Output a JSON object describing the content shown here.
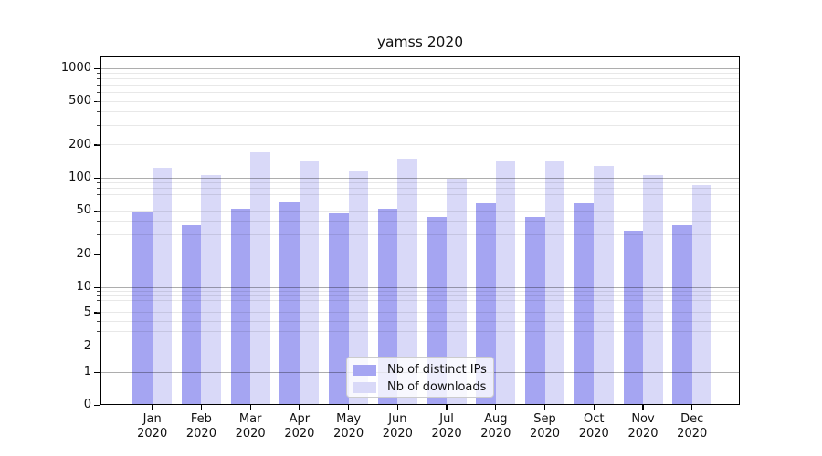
{
  "title": "yamss 2020",
  "legend": {
    "items": [
      {
        "label": "Nb of distinct IPs",
        "color": "#a5a5f2"
      },
      {
        "label": "Nb of downloads",
        "color": "#d9d9f8"
      }
    ]
  },
  "y_axis": {
    "tick_labels": [
      "1000",
      "500",
      "200",
      "100",
      "50",
      "20",
      "10",
      "5",
      "2",
      "1",
      "0"
    ]
  },
  "x_axis": {
    "months": [
      "Jan",
      "Feb",
      "Mar",
      "Apr",
      "May",
      "Jun",
      "Jul",
      "Aug",
      "Sep",
      "Oct",
      "Nov",
      "Dec"
    ],
    "year": "2020"
  },
  "colors": {
    "distinct_ips": "#a5a5f2",
    "downloads": "#d9d9f8",
    "grid_major": "rgba(0,0,0,0.32)",
    "grid_minor": "rgba(0,0,0,0.09)",
    "axis": "#000000"
  },
  "chart_data": {
    "type": "bar",
    "title": "yamss 2020",
    "yscale": "symlog",
    "ylim": [
      0,
      1200
    ],
    "grid": "horizontal log major+minor",
    "legend_position": "lower center",
    "y_ticks": [
      0,
      1,
      2,
      5,
      10,
      20,
      50,
      100,
      200,
      500,
      1000
    ],
    "categories": [
      "Jan 2020",
      "Feb 2020",
      "Mar 2020",
      "Apr 2020",
      "May 2020",
      "Jun 2020",
      "Jul 2020",
      "Aug 2020",
      "Sep 2020",
      "Oct 2020",
      "Nov 2020",
      "Dec 2020"
    ],
    "series": [
      {
        "name": "Nb of distinct IPs",
        "color": "#a5a5f2",
        "values": [
          48,
          37,
          52,
          61,
          47,
          52,
          44,
          59,
          44,
          59,
          33,
          37
        ]
      },
      {
        "name": "Nb of downloads",
        "color": "#d9d9f8",
        "values": [
          124,
          105,
          171,
          141,
          116,
          149,
          98,
          143,
          142,
          129,
          105,
          86
        ]
      }
    ]
  }
}
